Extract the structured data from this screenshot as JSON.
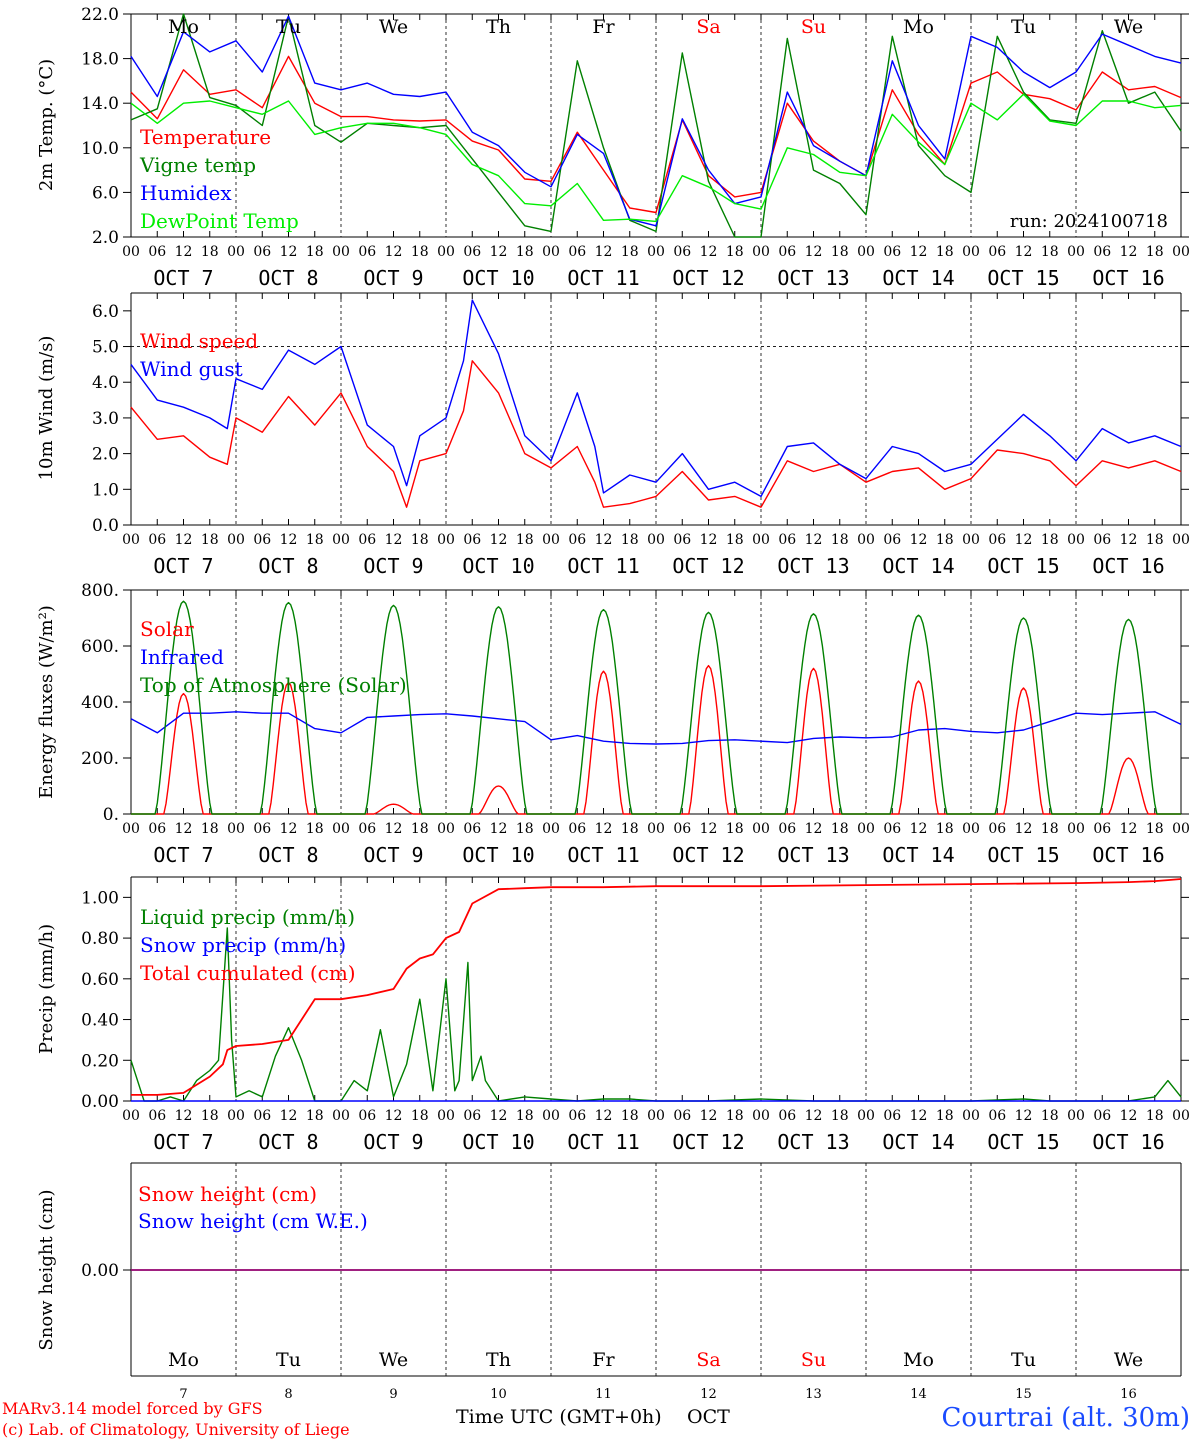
{
  "colors": {
    "red": "#ff0000",
    "dark_green": "#008000",
    "blue": "#0000ff",
    "light_green": "#00ee00",
    "purple": "#800080",
    "footer_blue": "#1a4bff"
  },
  "days": {
    "dates": [
      "OCT  7",
      "OCT  8",
      "OCT  9",
      "OCT 10",
      "OCT 11",
      "OCT 12",
      "OCT 13",
      "OCT 14",
      "OCT 15",
      "OCT 16"
    ],
    "weekdays": [
      "Mo",
      "Tu",
      "We",
      "Th",
      "Fr",
      "Sa",
      "Su",
      "Mo",
      "Tu",
      "We"
    ],
    "weekend": [
      false,
      false,
      false,
      false,
      false,
      true,
      true,
      false,
      false,
      false
    ],
    "numbers": [
      "7",
      "8",
      "9",
      "10",
      "11",
      "12",
      "13",
      "14",
      "15",
      "16"
    ],
    "hour_labels": [
      "00",
      "06",
      "12",
      "18"
    ],
    "end_label": "00"
  },
  "footer": {
    "model": "MARv3.14 model forced by GFS",
    "lab": "(c) Lab. of Climatology, University of Liege",
    "time_axis": "Time UTC (GMT+0h)",
    "month": "OCT",
    "station": "Courtrai (alt. 30m)"
  },
  "chart_data": [
    {
      "type": "line",
      "ylabel": "2m Temp. (°C)",
      "ylim": [
        2,
        22
      ],
      "yticks": [
        "2.0",
        "6.0",
        "10.0",
        "14.0",
        "18.0",
        "22.0"
      ],
      "yvalues": [
        2,
        6,
        10,
        14,
        18,
        22
      ],
      "annotation": "run: 2024100718",
      "x_unit": "hours since OCT 7 00 UTC",
      "series": [
        {
          "name": "Temperature",
          "color": "red",
          "x": [
            0,
            6,
            12,
            18,
            24,
            30,
            36,
            42,
            48,
            54,
            60,
            66,
            72,
            78,
            84,
            90,
            96,
            102,
            108,
            114,
            120,
            126,
            132,
            138,
            144,
            150,
            156,
            162,
            168,
            174,
            180,
            186,
            192,
            198,
            204,
            210,
            216,
            222,
            228,
            234,
            240
          ],
          "y": [
            15,
            12.6,
            17,
            14.8,
            15.2,
            13.6,
            18.2,
            14,
            12.8,
            12.8,
            12.5,
            12.4,
            12.5,
            10.6,
            9.8,
            7.2,
            7,
            11.4,
            8,
            4.6,
            4.2,
            12.5,
            7.5,
            5.6,
            6,
            14,
            10.6,
            8.8,
            7.5,
            15.2,
            11.2,
            8.5,
            15.8,
            16.8,
            14.8,
            14.4,
            13.4,
            16.8,
            15.2,
            15.5,
            14.5
          ]
        },
        {
          "name": "Vigne temp",
          "color": "dark_green",
          "x": [
            0,
            6,
            12,
            18,
            24,
            30,
            36,
            42,
            48,
            54,
            60,
            66,
            72,
            78,
            84,
            90,
            96,
            102,
            108,
            114,
            120,
            126,
            132,
            138,
            144,
            150,
            156,
            162,
            168,
            174,
            180,
            186,
            192,
            198,
            204,
            210,
            216,
            222,
            228,
            234,
            240
          ],
          "y": [
            12.5,
            13.5,
            22,
            14.5,
            13.8,
            12,
            21.8,
            12,
            10.5,
            12.2,
            12,
            11.8,
            12,
            9,
            6,
            3,
            2.5,
            17.8,
            10,
            3.5,
            2.5,
            18.5,
            7,
            2,
            2,
            19.8,
            8,
            6.8,
            4,
            20,
            10.2,
            7.5,
            6,
            20,
            15,
            12.5,
            12.2,
            20.5,
            14,
            15,
            11.5
          ]
        },
        {
          "name": "Humidex",
          "color": "blue",
          "x": [
            0,
            6,
            12,
            18,
            24,
            30,
            36,
            42,
            48,
            54,
            60,
            66,
            72,
            78,
            84,
            90,
            96,
            102,
            108,
            114,
            120,
            126,
            132,
            138,
            144,
            150,
            156,
            162,
            168,
            174,
            180,
            186,
            192,
            198,
            204,
            210,
            216,
            222,
            228,
            234,
            240
          ],
          "y": [
            18.2,
            14.6,
            20.4,
            18.6,
            19.6,
            16.8,
            21.8,
            15.8,
            15.2,
            15.8,
            14.8,
            14.6,
            15,
            11.4,
            10.2,
            7.8,
            6.5,
            11.2,
            9.5,
            3.6,
            3,
            12.6,
            8,
            5,
            5.6,
            15,
            10.2,
            8.8,
            7.5,
            17.8,
            12,
            9,
            20,
            19,
            16.8,
            15.4,
            16.8,
            20.2,
            19.2,
            18.2,
            17.6
          ]
        },
        {
          "name": "DewPoint Temp",
          "color": "light_green",
          "x": [
            0,
            6,
            12,
            18,
            24,
            30,
            36,
            42,
            48,
            54,
            60,
            66,
            72,
            78,
            84,
            90,
            96,
            102,
            108,
            114,
            120,
            126,
            132,
            138,
            144,
            150,
            156,
            162,
            168,
            174,
            180,
            186,
            192,
            198,
            204,
            210,
            216,
            222,
            228,
            234,
            240
          ],
          "y": [
            14,
            12.2,
            14,
            14.2,
            13.6,
            13,
            14.2,
            11.2,
            11.8,
            12.2,
            12.2,
            11.8,
            11.2,
            8.5,
            7.5,
            5,
            4.8,
            6.8,
            3.5,
            3.6,
            3.4,
            7.5,
            6.5,
            5,
            4.5,
            10,
            9.4,
            7.8,
            7.5,
            13,
            10.5,
            8.5,
            14,
            12.5,
            14.8,
            12.4,
            12,
            14.2,
            14.2,
            13.6,
            13.8
          ]
        }
      ]
    },
    {
      "type": "line",
      "ylabel": "10m Wind (m/s)",
      "ylim": [
        0,
        6.5
      ],
      "yticks": [
        "0.0",
        "1.0",
        "2.0",
        "3.0",
        "4.0",
        "5.0",
        "6.0"
      ],
      "yvalues": [
        0,
        1,
        2,
        3,
        4,
        5,
        6
      ],
      "reference_line": 5,
      "series": [
        {
          "name": "Wind speed",
          "color": "red",
          "x": [
            0,
            6,
            12,
            18,
            22,
            24,
            30,
            36,
            42,
            48,
            54,
            60,
            63,
            66,
            72,
            76,
            78,
            84,
            90,
            96,
            102,
            106,
            108,
            114,
            120,
            126,
            132,
            138,
            144,
            150,
            156,
            162,
            168,
            174,
            180,
            186,
            192,
            198,
            204,
            210,
            216,
            222,
            228,
            234,
            240
          ],
          "y": [
            3.3,
            2.4,
            2.5,
            1.9,
            1.7,
            3,
            2.6,
            3.6,
            2.8,
            3.7,
            2.2,
            1.5,
            0.5,
            1.8,
            2,
            3.2,
            4.6,
            3.7,
            2,
            1.6,
            2.2,
            1.2,
            0.5,
            0.6,
            0.8,
            1.5,
            0.7,
            0.8,
            0.5,
            1.8,
            1.5,
            1.7,
            1.2,
            1.5,
            1.6,
            1,
            1.3,
            2.1,
            2,
            1.8,
            1.1,
            1.8,
            1.6,
            1.8,
            1.5
          ]
        },
        {
          "name": "Wind gust",
          "color": "blue",
          "x": [
            0,
            6,
            12,
            18,
            22,
            24,
            30,
            36,
            42,
            48,
            54,
            60,
            63,
            66,
            72,
            76,
            78,
            84,
            90,
            96,
            102,
            106,
            108,
            114,
            120,
            126,
            132,
            138,
            144,
            150,
            156,
            162,
            168,
            174,
            180,
            186,
            192,
            198,
            204,
            210,
            216,
            222,
            228,
            234,
            240
          ],
          "y": [
            4.5,
            3.5,
            3.3,
            3,
            2.7,
            4.1,
            3.8,
            4.9,
            4.5,
            5,
            2.8,
            2.2,
            1.1,
            2.5,
            3,
            4.6,
            6.3,
            4.8,
            2.5,
            1.8,
            3.7,
            2.2,
            0.9,
            1.4,
            1.2,
            2,
            1,
            1.2,
            0.8,
            2.2,
            2.3,
            1.7,
            1.3,
            2.2,
            2,
            1.5,
            1.7,
            2.4,
            3.1,
            2.5,
            1.8,
            2.7,
            2.3,
            2.5,
            2.2
          ]
        }
      ]
    },
    {
      "type": "line",
      "ylabel": "Energy fluxes (W/m²)",
      "ylim": [
        0,
        800
      ],
      "yticks": [
        "0.",
        "200.",
        "400.",
        "600.",
        "800."
      ],
      "yvalues": [
        0,
        200,
        400,
        600,
        800
      ],
      "series": [
        {
          "name": "Solar",
          "color": "red",
          "peaks": [
            430,
            470,
            35,
            100,
            510,
            530,
            520,
            475,
            450,
            200
          ]
        },
        {
          "name": "Infrared",
          "color": "blue",
          "x": [
            0,
            6,
            12,
            18,
            24,
            30,
            36,
            42,
            48,
            54,
            60,
            66,
            72,
            78,
            84,
            90,
            96,
            102,
            108,
            114,
            120,
            126,
            132,
            138,
            144,
            150,
            156,
            162,
            168,
            174,
            180,
            186,
            192,
            198,
            204,
            210,
            216,
            222,
            228,
            234,
            240
          ],
          "y": [
            340,
            290,
            360,
            360,
            365,
            360,
            360,
            305,
            290,
            345,
            350,
            355,
            358,
            350,
            340,
            330,
            265,
            280,
            260,
            252,
            250,
            252,
            262,
            265,
            260,
            255,
            270,
            275,
            272,
            275,
            300,
            305,
            295,
            290,
            300,
            330,
            360,
            355,
            360,
            365,
            320
          ]
        },
        {
          "name": "Top of Atmosphere (Solar)",
          "color": "dark_green",
          "peaks": [
            760,
            755,
            745,
            740,
            730,
            720,
            715,
            710,
            700,
            695
          ]
        }
      ]
    },
    {
      "type": "line",
      "ylabel": "Precip (mm/h)",
      "ylim": [
        0,
        1.1
      ],
      "yticks": [
        "0.00",
        "0.20",
        "0.40",
        "0.60",
        "0.80",
        "1.00"
      ],
      "yvalues": [
        0,
        0.2,
        0.4,
        0.6,
        0.8,
        1.0
      ],
      "series": [
        {
          "name": "Liquid precip (mm/h)",
          "color": "dark_green",
          "x": [
            0,
            3,
            6,
            9,
            12,
            15,
            18,
            20,
            22,
            23,
            24,
            27,
            30,
            33,
            36,
            39,
            42,
            45,
            48,
            51,
            54,
            57,
            60,
            63,
            66,
            69,
            72,
            74,
            75,
            77,
            78,
            80,
            81,
            84,
            90,
            96,
            102,
            108,
            114,
            120,
            132,
            144,
            156,
            168,
            180,
            192,
            204,
            210,
            216,
            228,
            234,
            237,
            240
          ],
          "y": [
            0.2,
            0,
            0,
            0.02,
            0,
            0.1,
            0.15,
            0.2,
            0.85,
            0.3,
            0.02,
            0.05,
            0.02,
            0.22,
            0.36,
            0.2,
            0,
            0,
            0,
            0.1,
            0.05,
            0.35,
            0.02,
            0.18,
            0.5,
            0.05,
            0.6,
            0.05,
            0.1,
            0.68,
            0.1,
            0.22,
            0.1,
            0,
            0.02,
            0.01,
            0,
            0.01,
            0.01,
            0,
            0,
            0.01,
            0,
            0,
            0,
            0,
            0.01,
            0,
            0,
            0,
            0.02,
            0.1,
            0.02
          ]
        },
        {
          "name": "Snow precip (mm/h)",
          "color": "blue",
          "x": [
            0,
            240
          ],
          "y": [
            0,
            0
          ]
        },
        {
          "name": "Total cumulated (cm)",
          "color": "red",
          "x": [
            0,
            6,
            12,
            18,
            21,
            22,
            24,
            30,
            36,
            42,
            48,
            54,
            60,
            63,
            66,
            69,
            72,
            75,
            78,
            84,
            90,
            96,
            108,
            120,
            144,
            168,
            192,
            216,
            228,
            234,
            237,
            240
          ],
          "y": [
            0.03,
            0.03,
            0.04,
            0.12,
            0.18,
            0.25,
            0.27,
            0.28,
            0.3,
            0.5,
            0.5,
            0.52,
            0.55,
            0.65,
            0.7,
            0.72,
            0.8,
            0.83,
            0.97,
            1.04,
            1.045,
            1.05,
            1.05,
            1.055,
            1.055,
            1.06,
            1.065,
            1.07,
            1.075,
            1.08,
            1.085,
            1.09
          ]
        }
      ]
    },
    {
      "type": "line",
      "ylabel": "Snow height (cm)",
      "yticks": [
        "0.00"
      ],
      "yvalues": [
        0
      ],
      "series": [
        {
          "name": "Snow height (cm)",
          "color": "red",
          "x": [
            0,
            240
          ],
          "y": [
            0,
            0
          ]
        },
        {
          "name": "Snow height (cm W.E.)",
          "color": "blue",
          "x": [
            0,
            240
          ],
          "y": [
            0,
            0
          ]
        }
      ]
    }
  ]
}
